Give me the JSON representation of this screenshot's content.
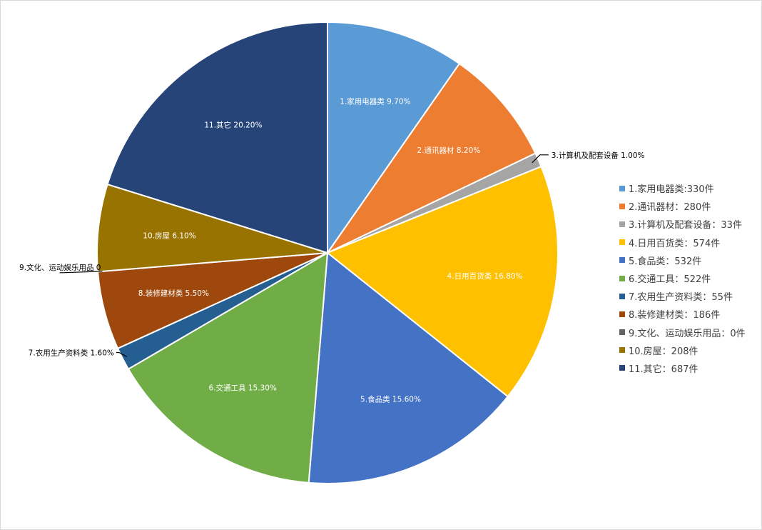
{
  "chart_data": {
    "type": "pie",
    "slices": [
      {
        "label": "1.家用电器类",
        "value": 9.7,
        "display": "9.70%",
        "color": "#5B9BD5",
        "label_pos": "inside"
      },
      {
        "label": "2.通讯器材",
        "value": 8.2,
        "display": "8.20%",
        "color": "#ED7D31",
        "label_pos": "inside"
      },
      {
        "label": "3.计算机及配套设备",
        "value": 1.0,
        "display": "1.00%",
        "color": "#A5A5A5",
        "label_pos": "outside-right"
      },
      {
        "label": "4.日用百货类",
        "value": 16.8,
        "display": "16.80%",
        "color": "#FFC000",
        "label_pos": "inside"
      },
      {
        "label": "5.食品类",
        "value": 15.6,
        "display": "15.60%",
        "color": "#4472C4",
        "label_pos": "inside"
      },
      {
        "label": "6.交通工具",
        "value": 15.3,
        "display": "15.30%",
        "color": "#70AD47",
        "label_pos": "inside"
      },
      {
        "label": "7.农用生产资料类",
        "value": 1.6,
        "display": "1.60%",
        "color": "#255E91",
        "label_pos": "outside-left"
      },
      {
        "label": "8.装修建材类",
        "value": 5.5,
        "display": "5.50%",
        "color": "#9E480E",
        "label_pos": "inside"
      },
      {
        "label": "9.文化、运动娱乐用品",
        "value": 0.0,
        "display": "0",
        "color": "#636363",
        "label_pos": "outside-left"
      },
      {
        "label": "10.房屋",
        "value": 6.1,
        "display": "6.10%",
        "color": "#997300",
        "label_pos": "inside"
      },
      {
        "label": "11.其它",
        "value": 20.2,
        "display": "20.20%",
        "color": "#264478",
        "label_pos": "inside"
      }
    ],
    "legend": {
      "placement": "right",
      "entries": [
        "1.家用电器类:330件",
        "2.通讯器材：280件",
        "3.计算机及配套设备：33件",
        "4.日用百货类：574件",
        "5.食品类：532件",
        "6.交通工具：522件",
        "7.农用生产资料类：55件",
        "8.装修建材类：186件",
        "9.文化、运动娱乐用品：0件",
        "10.房屋：208件",
        "11.其它：687件"
      ]
    }
  }
}
